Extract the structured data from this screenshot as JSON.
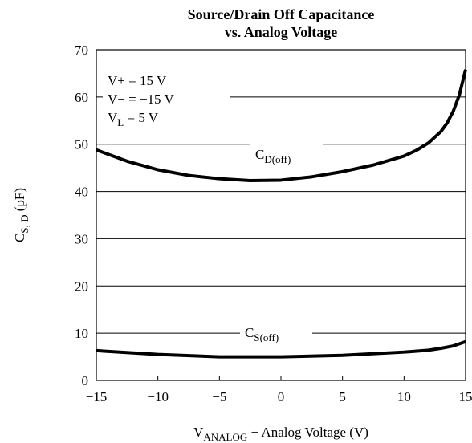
{
  "chart_data": {
    "type": "line",
    "title": [
      "Source/Drain Off Capacitance",
      "vs. Analog Voltage"
    ],
    "x_label": {
      "main": "V",
      "sub": "ANALOG",
      "rest": " − Analog Voltage (V)"
    },
    "y_label": {
      "main": "C",
      "sub": "S, D",
      "rest": " (pF)"
    },
    "annotations": [
      "V+ = 15 V",
      "V− = −15 V",
      {
        "main": "V",
        "sub": "L",
        "rest": " = 5 V"
      }
    ],
    "xlim": [
      -15,
      15
    ],
    "xticks": [
      {
        "value": -15,
        "label": "−15"
      },
      {
        "value": -10,
        "label": "−10"
      },
      {
        "value": -5,
        "label": "−5"
      },
      0,
      5,
      10,
      15
    ],
    "ylim": [
      0,
      70
    ],
    "yticks": [
      0,
      10,
      20,
      30,
      40,
      50,
      60,
      70
    ],
    "grid": true,
    "series": [
      {
        "name": {
          "main": "C",
          "sub": "D(off)"
        },
        "color": "#000000",
        "x": [
          -15,
          -12.5,
          -10,
          -7.5,
          -5,
          -2.5,
          0,
          2.5,
          5,
          7.5,
          10,
          11,
          12,
          13,
          13.5,
          14,
          14.5,
          15
        ],
        "values": [
          48.8,
          46.4,
          44.6,
          43.4,
          42.7,
          42.3,
          42.4,
          43.1,
          44.2,
          45.6,
          47.5,
          48.7,
          50.3,
          52.7,
          54.5,
          57,
          60.5,
          65.8
        ]
      },
      {
        "name": {
          "main": "C",
          "sub": "S(off)"
        },
        "color": "#000000",
        "x": [
          -15,
          -10,
          -5,
          0,
          5,
          10,
          12,
          13,
          14,
          15
        ],
        "values": [
          6.3,
          5.5,
          5.0,
          5.0,
          5.3,
          6.0,
          6.4,
          6.8,
          7.3,
          8.2
        ]
      }
    ]
  }
}
